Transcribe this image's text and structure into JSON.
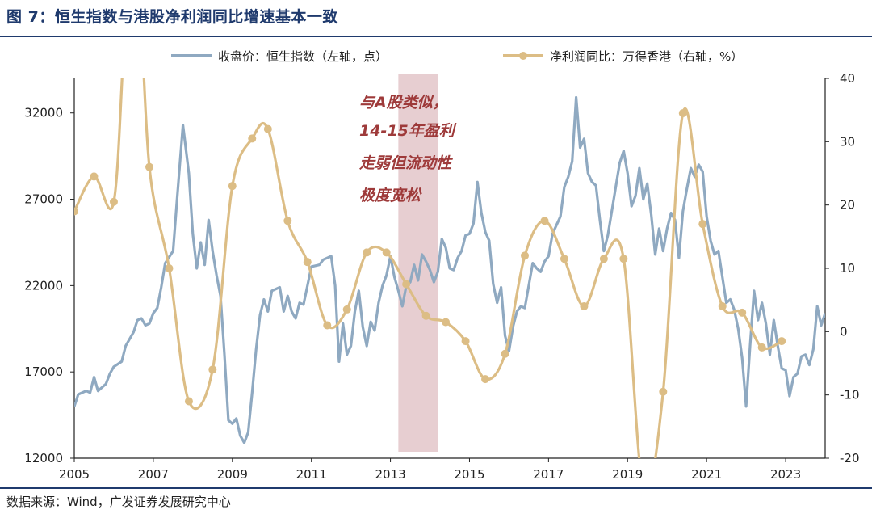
{
  "title": "图 7：恒生指数与港股净利润同比增速基本一致",
  "source": "数据来源：Wind，广发证券发展研究中心",
  "colors": {
    "title": "#1f3a6d",
    "index_line": "#8fa9c1",
    "profit_line": "#dcbd85",
    "highlight": "#e3c6c9",
    "annotation": "#9e3a3a"
  },
  "chart_data": {
    "type": "line",
    "title": "图 7：恒生指数与港股净利润同比增速基本一致",
    "legend_position": "top",
    "grid": false,
    "x_range": [
      2005,
      2024
    ],
    "x_ticks": [
      "2005",
      "2007",
      "2009",
      "2011",
      "2013",
      "2015",
      "2017",
      "2019",
      "2021",
      "2023"
    ],
    "left_axis": {
      "range": [
        12000,
        34000
      ],
      "ticks": [
        "12000",
        "17000",
        "22000",
        "27000",
        "32000"
      ]
    },
    "right_axis": {
      "range": [
        -20,
        40
      ],
      "ticks": [
        "-20",
        "-10",
        "0",
        "10",
        "20",
        "30",
        "40"
      ]
    },
    "highlight_span": [
      2013.2,
      2014.2
    ],
    "annotation": [
      "与A股类似，",
      "14-15年盈利",
      "走弱但流动性",
      "极度宽松"
    ],
    "series": [
      {
        "name": "收盘价：恒生指数（左轴，点）",
        "axis": "left",
        "color": "#8fa9c1",
        "points": [
          [
            2005.0,
            15000
          ],
          [
            2005.1,
            15700
          ],
          [
            2005.3,
            15900
          ],
          [
            2005.4,
            15800
          ],
          [
            2005.5,
            16700
          ],
          [
            2005.6,
            15900
          ],
          [
            2005.8,
            16300
          ],
          [
            2005.9,
            16900
          ],
          [
            2006.0,
            17300
          ],
          [
            2006.2,
            17600
          ],
          [
            2006.3,
            18500
          ],
          [
            2006.5,
            19300
          ],
          [
            2006.6,
            20000
          ],
          [
            2006.7,
            20100
          ],
          [
            2006.8,
            19700
          ],
          [
            2006.9,
            19800
          ],
          [
            2007.0,
            20400
          ],
          [
            2007.1,
            20700
          ],
          [
            2007.2,
            21900
          ],
          [
            2007.3,
            23300
          ],
          [
            2007.5,
            24000
          ],
          [
            2007.6,
            27000
          ],
          [
            2007.75,
            31300
          ],
          [
            2007.9,
            28500
          ],
          [
            2008.0,
            25000
          ],
          [
            2008.1,
            23000
          ],
          [
            2008.2,
            24500
          ],
          [
            2008.3,
            23200
          ],
          [
            2008.4,
            25800
          ],
          [
            2008.5,
            24000
          ],
          [
            2008.6,
            22600
          ],
          [
            2008.7,
            21400
          ],
          [
            2008.8,
            18000
          ],
          [
            2008.9,
            14200
          ],
          [
            2009.0,
            14000
          ],
          [
            2009.1,
            14300
          ],
          [
            2009.2,
            13300
          ],
          [
            2009.3,
            12900
          ],
          [
            2009.4,
            13500
          ],
          [
            2009.5,
            15800
          ],
          [
            2009.6,
            18300
          ],
          [
            2009.7,
            20300
          ],
          [
            2009.8,
            21200
          ],
          [
            2009.9,
            20500
          ],
          [
            2010.0,
            21700
          ],
          [
            2010.2,
            21900
          ],
          [
            2010.3,
            20500
          ],
          [
            2010.4,
            21400
          ],
          [
            2010.5,
            20500
          ],
          [
            2010.6,
            20100
          ],
          [
            2010.7,
            21000
          ],
          [
            2010.8,
            20900
          ],
          [
            2010.9,
            22000
          ],
          [
            2011.0,
            23100
          ],
          [
            2011.2,
            23200
          ],
          [
            2011.3,
            23500
          ],
          [
            2011.5,
            23700
          ],
          [
            2011.6,
            22000
          ],
          [
            2011.7,
            17600
          ],
          [
            2011.8,
            19800
          ],
          [
            2011.9,
            18000
          ],
          [
            2012.0,
            18500
          ],
          [
            2012.1,
            20500
          ],
          [
            2012.2,
            21700
          ],
          [
            2012.3,
            19600
          ],
          [
            2012.4,
            18500
          ],
          [
            2012.5,
            19900
          ],
          [
            2012.6,
            19400
          ],
          [
            2012.7,
            21000
          ],
          [
            2012.8,
            22000
          ],
          [
            2012.9,
            22600
          ],
          [
            2013.0,
            23700
          ],
          [
            2013.1,
            22500
          ],
          [
            2013.2,
            21700
          ],
          [
            2013.3,
            20800
          ],
          [
            2013.4,
            22000
          ],
          [
            2013.5,
            22200
          ],
          [
            2013.6,
            23200
          ],
          [
            2013.7,
            22300
          ],
          [
            2013.8,
            23800
          ],
          [
            2013.9,
            23400
          ],
          [
            2014.0,
            22900
          ],
          [
            2014.1,
            22200
          ],
          [
            2014.2,
            22800
          ],
          [
            2014.3,
            24700
          ],
          [
            2014.4,
            24200
          ],
          [
            2014.5,
            23000
          ],
          [
            2014.6,
            22900
          ],
          [
            2014.7,
            23600
          ],
          [
            2014.8,
            24000
          ],
          [
            2014.9,
            24900
          ],
          [
            2015.0,
            25000
          ],
          [
            2015.1,
            25600
          ],
          [
            2015.2,
            28000
          ],
          [
            2015.3,
            26200
          ],
          [
            2015.4,
            25100
          ],
          [
            2015.5,
            24600
          ],
          [
            2015.6,
            22100
          ],
          [
            2015.7,
            21000
          ],
          [
            2015.8,
            21900
          ],
          [
            2015.9,
            19100
          ],
          [
            2016.0,
            18200
          ],
          [
            2016.1,
            19600
          ],
          [
            2016.2,
            20500
          ],
          [
            2016.3,
            20800
          ],
          [
            2016.4,
            20700
          ],
          [
            2016.5,
            22000
          ],
          [
            2016.6,
            23300
          ],
          [
            2016.7,
            23000
          ],
          [
            2016.8,
            22800
          ],
          [
            2016.9,
            23400
          ],
          [
            2017.0,
            23700
          ],
          [
            2017.1,
            25000
          ],
          [
            2017.2,
            25500
          ],
          [
            2017.3,
            26000
          ],
          [
            2017.4,
            27700
          ],
          [
            2017.5,
            28300
          ],
          [
            2017.6,
            29200
          ],
          [
            2017.7,
            32900
          ],
          [
            2017.8,
            30000
          ],
          [
            2017.9,
            30500
          ],
          [
            2018.0,
            28500
          ],
          [
            2018.1,
            28000
          ],
          [
            2018.2,
            27800
          ],
          [
            2018.3,
            25800
          ],
          [
            2018.4,
            24000
          ],
          [
            2018.5,
            24900
          ],
          [
            2018.6,
            26300
          ],
          [
            2018.7,
            27700
          ],
          [
            2018.8,
            29100
          ],
          [
            2018.9,
            29800
          ],
          [
            2019.0,
            28500
          ],
          [
            2019.1,
            26600
          ],
          [
            2019.2,
            27200
          ],
          [
            2019.3,
            28800
          ],
          [
            2019.4,
            27000
          ],
          [
            2019.5,
            27900
          ],
          [
            2019.6,
            26100
          ],
          [
            2019.7,
            23800
          ],
          [
            2019.8,
            25300
          ],
          [
            2019.9,
            24000
          ],
          [
            2020.0,
            25300
          ],
          [
            2020.1,
            26200
          ],
          [
            2020.2,
            25800
          ],
          [
            2020.3,
            23600
          ],
          [
            2020.4,
            26300
          ],
          [
            2020.5,
            27600
          ],
          [
            2020.6,
            28800
          ],
          [
            2020.7,
            28300
          ],
          [
            2020.8,
            29000
          ],
          [
            2020.9,
            28600
          ],
          [
            2021.0,
            26000
          ],
          [
            2021.1,
            24600
          ],
          [
            2021.2,
            23800
          ],
          [
            2021.3,
            24000
          ],
          [
            2021.4,
            22500
          ],
          [
            2021.5,
            21000
          ],
          [
            2021.6,
            21200
          ],
          [
            2021.7,
            20600
          ],
          [
            2021.8,
            19500
          ],
          [
            2021.9,
            17800
          ],
          [
            2022.0,
            15000
          ],
          [
            2022.1,
            18500
          ],
          [
            2022.2,
            21700
          ],
          [
            2022.3,
            20000
          ],
          [
            2022.4,
            21000
          ],
          [
            2022.5,
            19800
          ],
          [
            2022.6,
            18000
          ],
          [
            2022.7,
            20000
          ],
          [
            2022.8,
            18500
          ],
          [
            2022.9,
            17200
          ],
          [
            2023.0,
            17100
          ],
          [
            2023.1,
            15600
          ],
          [
            2023.2,
            16700
          ],
          [
            2023.3,
            16900
          ],
          [
            2023.4,
            17900
          ],
          [
            2023.5,
            18000
          ],
          [
            2023.6,
            17400
          ],
          [
            2023.7,
            18300
          ],
          [
            2023.8,
            20800
          ],
          [
            2023.9,
            19700
          ],
          [
            2024.0,
            20400
          ]
        ]
      },
      {
        "name": "净利润同比：万得香港（右轴，%）",
        "axis": "right",
        "color": "#dcbd85",
        "points": [
          [
            2005.0,
            19
          ],
          [
            2005.5,
            24.5
          ],
          [
            2006.0,
            20.5
          ],
          [
            2006.3,
            49
          ],
          [
            2006.6,
            58
          ],
          [
            2006.9,
            26
          ],
          [
            2007.4,
            10
          ],
          [
            2007.9,
            -11
          ],
          [
            2008.5,
            -6
          ],
          [
            2009.0,
            23
          ],
          [
            2009.5,
            30.5
          ],
          [
            2009.9,
            32
          ],
          [
            2010.4,
            17.5
          ],
          [
            2010.9,
            11
          ],
          [
            2011.4,
            1
          ],
          [
            2011.9,
            3.5
          ],
          [
            2012.4,
            12.5
          ],
          [
            2012.9,
            12.5
          ],
          [
            2013.4,
            7.5
          ],
          [
            2013.9,
            2.5
          ],
          [
            2014.4,
            1.5
          ],
          [
            2014.9,
            -1.5
          ],
          [
            2015.4,
            -7.5
          ],
          [
            2015.9,
            -3.5
          ],
          [
            2016.4,
            12
          ],
          [
            2016.9,
            17.5
          ],
          [
            2017.4,
            11.5
          ],
          [
            2017.9,
            4
          ],
          [
            2018.4,
            11.5
          ],
          [
            2018.9,
            11.5
          ],
          [
            2019.4,
            -25
          ],
          [
            2019.9,
            -9.5
          ],
          [
            2020.4,
            34.5
          ],
          [
            2020.9,
            17
          ],
          [
            2021.4,
            4
          ],
          [
            2021.9,
            3
          ],
          [
            2022.4,
            -2.5
          ],
          [
            2022.9,
            -1.5
          ]
        ]
      }
    ]
  }
}
